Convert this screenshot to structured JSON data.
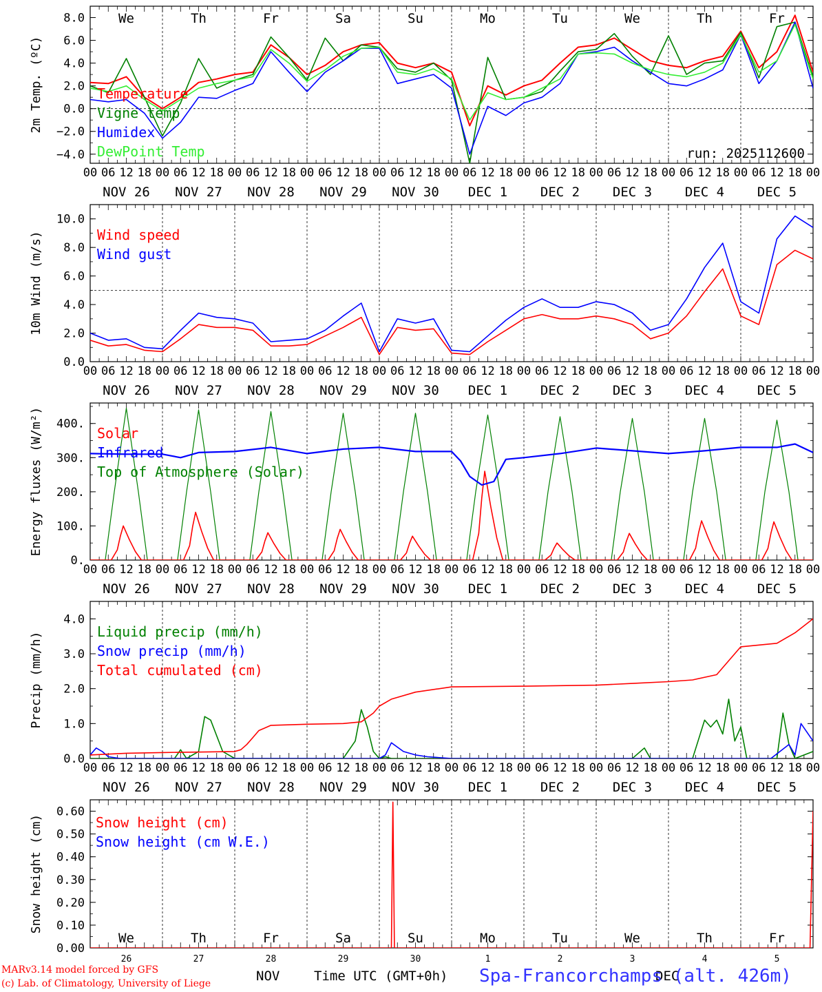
{
  "time_axis": {
    "hour_ticks": [
      "00",
      "06",
      "12",
      "18"
    ],
    "last_tick": "00",
    "dates": [
      "NOV 26",
      "NOV 27",
      "NOV 28",
      "NOV 29",
      "NOV 30",
      "DEC  1",
      "DEC  2",
      "DEC  3",
      "DEC  4",
      "DEC  5"
    ],
    "weekdays": [
      "We",
      "Th",
      "Fr",
      "Sa",
      "Su",
      "Mo",
      "Tu",
      "We",
      "Th",
      "Fr"
    ],
    "weekend_indices": [
      3,
      4
    ],
    "day_numbers": [
      "26",
      "27",
      "28",
      "29",
      "30",
      "1",
      "2",
      "3",
      "4",
      "5"
    ]
  },
  "footer": {
    "model_line1": "MARv3.14 model forced by GFS",
    "model_line2": "(c) Lab. of Climatology, University of Liege",
    "month_left": "NOV",
    "month_right": "DEC",
    "axis_title": "Time UTC (GMT+0h)",
    "station": "Spa-Francorchamps (alt. 426m)"
  },
  "colors": {
    "red": "#ff0000",
    "dark_green": "#008000",
    "blue": "#0000ff",
    "light_green": "#33ee33",
    "weekend": "#ff0000"
  },
  "chart_data": [
    {
      "id": "temp",
      "type": "line",
      "ylabel": "2m Temp. (ºC)",
      "ylim": [
        -4.8,
        9.0
      ],
      "yticks": [
        8,
        6,
        4,
        2,
        0,
        -2,
        -4
      ],
      "ytick_labels": [
        "8.0",
        "6.0",
        "4.0",
        "2.0",
        "0.0",
        "−2.0",
        "−4.0"
      ],
      "hline": 0,
      "annotation": "run: 2025112600",
      "series": [
        {
          "name": "Temperature",
          "color": "red",
          "x": [
            0,
            6,
            12,
            18,
            24,
            30,
            36,
            42,
            48,
            54,
            60,
            66,
            72,
            78,
            84,
            90,
            96,
            102,
            108,
            114,
            120,
            126,
            132,
            138,
            144,
            150,
            156,
            162,
            168,
            174,
            180,
            186,
            192,
            198,
            204,
            210,
            216,
            222,
            228,
            234,
            240
          ],
          "y": [
            2.3,
            2.2,
            2.8,
            1.0,
            0.0,
            1.0,
            2.3,
            2.6,
            3.0,
            3.2,
            5.6,
            4.5,
            3.0,
            3.8,
            5.0,
            5.6,
            5.8,
            4.0,
            3.6,
            4.0,
            3.2,
            -1.5,
            2.0,
            1.2,
            2.0,
            2.5,
            4.0,
            5.4,
            5.6,
            6.2,
            5.2,
            4.2,
            3.8,
            3.6,
            4.2,
            4.6,
            6.8,
            3.6,
            5.0,
            8.2,
            3.2
          ]
        },
        {
          "name": "Vigne temp",
          "color": "dark_green",
          "x": [
            0,
            6,
            12,
            18,
            24,
            30,
            36,
            42,
            48,
            54,
            60,
            66,
            72,
            78,
            84,
            90,
            96,
            102,
            108,
            114,
            120,
            126,
            132,
            138,
            144,
            150,
            156,
            162,
            168,
            174,
            180,
            186,
            192,
            198,
            204,
            210,
            216,
            222,
            228,
            234,
            240
          ],
          "y": [
            2.0,
            1.4,
            4.4,
            1.0,
            -2.4,
            0.5,
            4.4,
            1.8,
            2.5,
            3.0,
            6.3,
            4.5,
            2.5,
            6.2,
            4.2,
            5.6,
            5.4,
            3.5,
            3.2,
            4.0,
            2.5,
            -4.8,
            4.5,
            0.8,
            1.0,
            1.5,
            3.3,
            5.0,
            5.2,
            6.6,
            4.6,
            3.0,
            6.4,
            3.0,
            4.0,
            4.2,
            6.7,
            2.7,
            7.2,
            7.6,
            2.8
          ]
        },
        {
          "name": "Humidex",
          "color": "blue",
          "x": [
            0,
            6,
            12,
            18,
            24,
            30,
            36,
            42,
            48,
            54,
            60,
            66,
            72,
            78,
            84,
            90,
            96,
            102,
            108,
            114,
            120,
            126,
            132,
            138,
            144,
            150,
            156,
            162,
            168,
            174,
            180,
            186,
            192,
            198,
            204,
            210,
            216,
            222,
            228,
            234,
            240
          ],
          "y": [
            0.8,
            0.6,
            0.8,
            -0.4,
            -2.6,
            -1.2,
            1.0,
            0.9,
            1.6,
            2.2,
            5.0,
            3.2,
            1.5,
            3.2,
            4.2,
            5.3,
            5.3,
            2.2,
            2.6,
            3.0,
            1.8,
            -4.0,
            0.2,
            -0.6,
            0.5,
            1.0,
            2.2,
            4.8,
            5.0,
            5.4,
            4.2,
            3.2,
            2.2,
            2.0,
            2.6,
            3.4,
            6.5,
            2.2,
            4.2,
            7.6,
            1.8
          ]
        },
        {
          "name": "DewPoint Temp",
          "color": "light_green",
          "x": [
            0,
            6,
            12,
            18,
            24,
            30,
            36,
            42,
            48,
            54,
            60,
            66,
            72,
            78,
            84,
            90,
            96,
            102,
            108,
            114,
            120,
            126,
            132,
            138,
            144,
            150,
            156,
            162,
            168,
            174,
            180,
            186,
            192,
            198,
            204,
            210,
            216,
            222,
            228,
            234,
            240
          ],
          "y": [
            1.8,
            1.5,
            2.0,
            0.8,
            -0.2,
            0.8,
            1.8,
            2.2,
            2.5,
            2.8,
            5.2,
            4.0,
            2.4,
            3.4,
            4.6,
            5.3,
            5.4,
            3.2,
            3.0,
            3.5,
            2.6,
            -1.0,
            1.4,
            0.8,
            1.0,
            1.8,
            2.6,
            4.8,
            4.9,
            4.8,
            4.0,
            3.4,
            3.0,
            2.8,
            3.2,
            4.0,
            6.5,
            3.2,
            4.2,
            7.4,
            2.6
          ]
        }
      ]
    },
    {
      "id": "wind",
      "type": "line",
      "ylabel": "10m Wind (m/s)",
      "ylim": [
        0,
        11
      ],
      "yticks": [
        0,
        2,
        4,
        6,
        8,
        10
      ],
      "ytick_labels": [
        "0.0",
        "2.0",
        "4.0",
        "6.0",
        "8.0",
        "10.0"
      ],
      "hline": 5,
      "series": [
        {
          "name": "Wind speed",
          "color": "red",
          "x": [
            0,
            6,
            12,
            18,
            24,
            30,
            36,
            42,
            48,
            54,
            60,
            66,
            72,
            78,
            84,
            90,
            96,
            102,
            108,
            114,
            120,
            126,
            132,
            138,
            144,
            150,
            156,
            162,
            168,
            174,
            180,
            186,
            192,
            198,
            204,
            210,
            216,
            222,
            228,
            234,
            240
          ],
          "y": [
            1.5,
            1.1,
            1.2,
            0.8,
            0.7,
            1.6,
            2.6,
            2.4,
            2.4,
            2.2,
            1.1,
            1.1,
            1.2,
            1.8,
            2.4,
            3.1,
            0.5,
            2.4,
            2.2,
            2.3,
            0.6,
            0.5,
            1.4,
            2.2,
            3.0,
            3.3,
            3.0,
            3.0,
            3.2,
            3.0,
            2.6,
            1.6,
            2.0,
            3.2,
            4.9,
            6.5,
            3.2,
            2.6,
            6.8,
            7.8,
            7.2
          ]
        },
        {
          "name": "Wind gust",
          "color": "blue",
          "x": [
            0,
            6,
            12,
            18,
            24,
            30,
            36,
            42,
            48,
            54,
            60,
            66,
            72,
            78,
            84,
            90,
            96,
            102,
            108,
            114,
            120,
            126,
            132,
            138,
            144,
            150,
            156,
            162,
            168,
            174,
            180,
            186,
            192,
            198,
            204,
            210,
            216,
            222,
            228,
            234,
            240
          ],
          "y": [
            2.0,
            1.5,
            1.6,
            1.0,
            0.9,
            2.2,
            3.4,
            3.1,
            3.0,
            2.7,
            1.4,
            1.5,
            1.6,
            2.2,
            3.2,
            4.1,
            0.7,
            3.0,
            2.7,
            3.0,
            0.8,
            0.7,
            1.8,
            2.9,
            3.8,
            4.4,
            3.8,
            3.8,
            4.2,
            4.0,
            3.4,
            2.2,
            2.6,
            4.4,
            6.6,
            8.3,
            4.2,
            3.4,
            8.6,
            10.2,
            9.4
          ]
        }
      ]
    },
    {
      "id": "energy",
      "type": "line",
      "ylabel": "Energy fluxes (W/m²)",
      "ylim": [
        0,
        460
      ],
      "yticks": [
        0,
        100,
        200,
        300,
        400
      ],
      "ytick_labels": [
        "0.",
        "100.",
        "200.",
        "300.",
        "400."
      ],
      "solar_peaks": [
        100,
        140,
        80,
        90,
        70,
        260,
        50,
        78,
        115,
        112
      ],
      "toa_peaks": [
        445,
        440,
        435,
        430,
        430,
        425,
        420,
        415,
        415,
        410
      ],
      "series": [
        {
          "name": "Solar",
          "color": "red"
        },
        {
          "name": "Infrared",
          "color": "blue",
          "x": [
            0,
            12,
            24,
            30,
            36,
            48,
            60,
            72,
            84,
            96,
            108,
            120,
            123,
            126,
            130,
            134,
            138,
            144,
            156,
            168,
            180,
            192,
            204,
            216,
            228,
            234,
            240
          ],
          "y": [
            312,
            310,
            310,
            300,
            315,
            318,
            330,
            312,
            325,
            330,
            318,
            318,
            290,
            245,
            220,
            230,
            295,
            300,
            312,
            328,
            320,
            312,
            320,
            330,
            330,
            340,
            315
          ]
        },
        {
          "name": "Top of Atmosphere (Solar)",
          "color": "dark_green"
        }
      ]
    },
    {
      "id": "precip",
      "type": "line",
      "ylabel": "Precip (mm/h)",
      "ylim": [
        0,
        4.5
      ],
      "yticks": [
        0,
        1,
        2,
        3,
        4
      ],
      "ytick_labels": [
        "0.0",
        "1.0",
        "2.0",
        "3.0",
        "4.0"
      ],
      "series": [
        {
          "name": "Liquid precip (mm/h)",
          "color": "dark_green",
          "x": [
            0,
            28,
            30,
            32,
            36,
            38,
            40,
            44,
            48,
            60,
            84,
            88,
            90,
            92,
            94,
            96,
            98,
            100,
            140,
            180,
            184,
            186,
            188,
            190,
            200,
            204,
            206,
            208,
            210,
            212,
            214,
            216,
            218,
            220,
            228,
            230,
            232,
            234,
            240
          ],
          "y": [
            0,
            0,
            0.25,
            0,
            0.2,
            1.2,
            1.1,
            0.2,
            0,
            0,
            0,
            0.5,
            1.4,
            0.9,
            0.2,
            0,
            0.05,
            0,
            0,
            0,
            0.3,
            0,
            0,
            0,
            0,
            1.1,
            0.9,
            1.1,
            0.7,
            1.7,
            0.5,
            0.9,
            0,
            0,
            0,
            1.3,
            0.4,
            0,
            0.2
          ]
        },
        {
          "name": "Snow precip (mm/h)",
          "color": "blue",
          "x": [
            0,
            2,
            4,
            6,
            10,
            48,
            96,
            98,
            100,
            104,
            108,
            112,
            120,
            200,
            226,
            232,
            234,
            236,
            240
          ],
          "y": [
            0.1,
            0.3,
            0.2,
            0.05,
            0,
            0,
            0,
            0.1,
            0.45,
            0.2,
            0.1,
            0.05,
            0,
            0,
            0,
            0.4,
            0.1,
            1.0,
            0.5
          ]
        },
        {
          "name": "Total cumulated (cm)",
          "color": "red",
          "x": [
            0,
            12,
            24,
            48,
            50,
            52,
            54,
            56,
            60,
            72,
            84,
            90,
            94,
            96,
            100,
            108,
            120,
            144,
            168,
            180,
            192,
            200,
            208,
            212,
            216,
            228,
            234,
            240
          ],
          "y": [
            0.1,
            0.15,
            0.17,
            0.2,
            0.25,
            0.4,
            0.6,
            0.8,
            0.95,
            0.98,
            1.0,
            1.05,
            1.3,
            1.5,
            1.7,
            1.9,
            2.05,
            2.07,
            2.1,
            2.15,
            2.2,
            2.25,
            2.4,
            2.8,
            3.2,
            3.3,
            3.6,
            4.0
          ]
        }
      ]
    },
    {
      "id": "snow",
      "type": "line",
      "ylabel": "Snow height (cm)",
      "ylim": [
        0,
        0.65
      ],
      "yticks": [
        0,
        0.1,
        0.2,
        0.3,
        0.4,
        0.5,
        0.6
      ],
      "ytick_labels": [
        "0.00",
        "0.10",
        "0.20",
        "0.30",
        "0.40",
        "0.50",
        "0.60"
      ],
      "series": [
        {
          "name": "Snow height (cm)",
          "color": "red",
          "x": [
            0,
            100,
            100.5,
            101,
            239,
            240
          ],
          "y": [
            0,
            0,
            0.64,
            0,
            0,
            0.6
          ]
        },
        {
          "name": "Snow height (cm W.E.)",
          "color": "blue",
          "x": [],
          "y": []
        }
      ]
    }
  ]
}
